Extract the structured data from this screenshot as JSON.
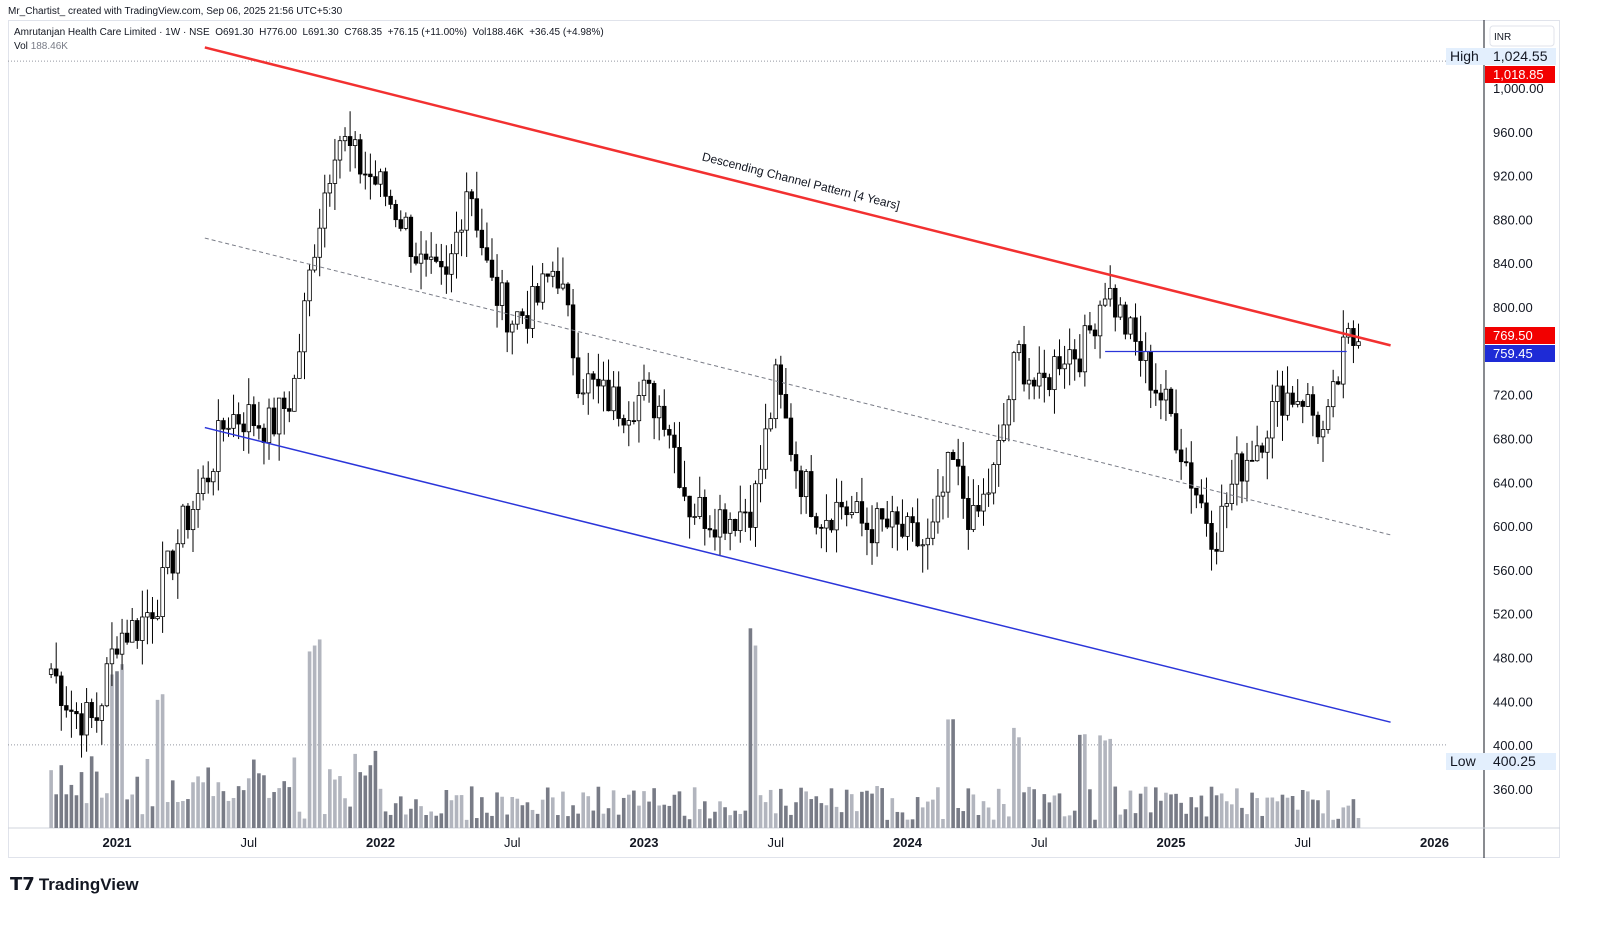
{
  "credit": "Mr_Chartist_ created with TradingView.com, Sep 06, 2025 21:56 UTC+5:30",
  "legend": {
    "symbol": "Amrutanjan Health Care Limited · 1W · NSE",
    "open": "O691.30",
    "high": "H776.00",
    "low": "L691.30",
    "close": "C768.35",
    "change": "+76.15 (+11.00%)",
    "vol": "Vol188.46K",
    "vol_change": "+36.45 (+4.98%)"
  },
  "vol_legend": {
    "label": "Vol",
    "value": "188.46K"
  },
  "brand": "TradingView",
  "chart_data": {
    "type": "candlestick",
    "title": "",
    "currency": "INR",
    "y_ticks": [
      "1,000.00",
      "960.00",
      "920.00",
      "880.00",
      "840.00",
      "800.00",
      "720.00",
      "680.00",
      "640.00",
      "600.00",
      "560.00",
      "520.00",
      "480.00",
      "440.00",
      "400.00",
      "360.00"
    ],
    "y_tick_values": [
      1000,
      960,
      920,
      880,
      840,
      800,
      720,
      680,
      640,
      600,
      560,
      520,
      480,
      440,
      400,
      360
    ],
    "x_ticks": [
      {
        "label": "2021",
        "date": 2021.0
      },
      {
        "label": "Jul",
        "date": 2021.5
      },
      {
        "label": "2022",
        "date": 2022.0
      },
      {
        "label": "Jul",
        "date": 2022.5
      },
      {
        "label": "2023",
        "date": 2023.0
      },
      {
        "label": "Jul",
        "date": 2023.5
      },
      {
        "label": "2024",
        "date": 2024.0
      },
      {
        "label": "Jul",
        "date": 2024.5
      },
      {
        "label": "2025",
        "date": 2025.0
      },
      {
        "label": "Jul",
        "date": 2025.5
      },
      {
        "label": "2026",
        "date": 2026.0
      }
    ],
    "ylim": [
      330,
      1030
    ],
    "approx_monthly_close": [
      [
        "2020-10",
        470
      ],
      [
        "2020-11",
        430
      ],
      [
        "2020-12",
        420
      ],
      [
        "2021-01",
        500
      ],
      [
        "2021-02",
        510
      ],
      [
        "2021-03",
        540
      ],
      [
        "2021-04",
        600
      ],
      [
        "2021-05",
        640
      ],
      [
        "2021-06",
        700
      ],
      [
        "2021-07",
        700
      ],
      [
        "2021-08",
        690
      ],
      [
        "2021-09",
        720
      ],
      [
        "2021-10",
        860
      ],
      [
        "2021-11",
        960
      ],
      [
        "2021-12",
        930
      ],
      [
        "2022-01",
        910
      ],
      [
        "2022-02",
        880
      ],
      [
        "2022-03",
        830
      ],
      [
        "2022-04",
        820
      ],
      [
        "2022-05",
        920
      ],
      [
        "2022-06",
        820
      ],
      [
        "2022-07",
        790
      ],
      [
        "2022-08",
        800
      ],
      [
        "2022-09",
        840
      ],
      [
        "2022-10",
        740
      ],
      [
        "2022-11",
        720
      ],
      [
        "2022-12",
        710
      ],
      [
        "2023-01",
        720
      ],
      [
        "2023-02",
        705
      ],
      [
        "2023-03",
        620
      ],
      [
        "2023-04",
        610
      ],
      [
        "2023-05",
        610
      ],
      [
        "2023-06",
        620
      ],
      [
        "2023-07",
        730
      ],
      [
        "2023-08",
        650
      ],
      [
        "2023-09",
        610
      ],
      [
        "2023-10",
        620
      ],
      [
        "2023-11",
        600
      ],
      [
        "2023-12",
        600
      ],
      [
        "2024-01",
        590
      ],
      [
        "2024-02",
        580
      ],
      [
        "2024-03",
        660
      ],
      [
        "2024-04",
        600
      ],
      [
        "2024-05",
        650
      ],
      [
        "2024-06",
        760
      ],
      [
        "2024-07",
        720
      ],
      [
        "2024-08",
        760
      ],
      [
        "2024-09",
        760
      ],
      [
        "2024-10",
        820
      ],
      [
        "2024-11",
        780
      ],
      [
        "2024-12",
        740
      ],
      [
        "2025-01",
        700
      ],
      [
        "2025-02",
        640
      ],
      [
        "2025-03",
        590
      ],
      [
        "2025-04",
        650
      ],
      [
        "2025-05",
        680
      ],
      [
        "2025-06",
        720
      ],
      [
        "2025-07",
        720
      ],
      [
        "2025-08",
        680
      ],
      [
        "2025-09",
        768.35
      ]
    ],
    "volume_spikes_k": [
      [
        "2021-01",
        3200
      ],
      [
        "2021-03",
        2600
      ],
      [
        "2021-10",
        3600
      ],
      [
        "2023-06",
        3800
      ],
      [
        "2024-03",
        2100
      ],
      [
        "2024-06",
        1900
      ],
      [
        "2024-09",
        1800
      ],
      [
        "2024-10",
        1800
      ],
      [
        "2025-01",
        700
      ]
    ],
    "last_volume_k": 188.46,
    "high_marker": {
      "label": "High",
      "value": "1,024.55"
    },
    "low_marker": {
      "label": "Low",
      "value": "400.25"
    },
    "price_labels": [
      {
        "value": "1,018.85",
        "color": "#f20000"
      },
      {
        "value": "769.50",
        "color": "#f20000"
      },
      {
        "value": "759.45",
        "color": "#1e2bd6"
      }
    ],
    "drawings": {
      "upper_channel": {
        "from": [
          "2021-05",
          1037
        ],
        "to": [
          "2025-11",
          765
        ],
        "color": "#f23030"
      },
      "lower_channel": {
        "from": [
          "2021-05",
          690
        ],
        "to": [
          "2025-11",
          421
        ],
        "color": "#2b35d9"
      },
      "mid_line": {
        "from": [
          "2021-05",
          863
        ],
        "to": [
          "2025-11",
          592
        ],
        "color": "#787b86"
      },
      "resistance": {
        "from": [
          "2024-10",
          759.45
        ],
        "to": [
          "2025-09",
          759.45
        ],
        "color": "#2b35d9"
      },
      "annotation": "Descending Channel Pattern [4 Years]"
    }
  }
}
